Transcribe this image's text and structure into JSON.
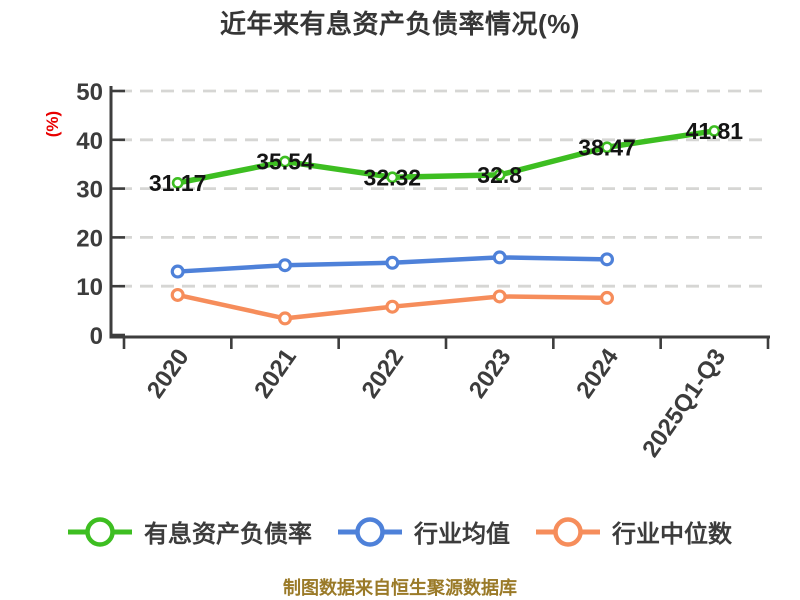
{
  "page": {
    "background": "#ffffff"
  },
  "chart_data": {
    "type": "line",
    "title": "近年来有息资产负债率情况(%)",
    "ylabel": "(%)",
    "ylabel_color": "#e80000",
    "categories": [
      "2020",
      "2021",
      "2022",
      "2023",
      "2024",
      "2025Q1-Q3"
    ],
    "yticks": [
      0,
      10,
      20,
      30,
      40,
      50
    ],
    "ylim": [
      0,
      50
    ],
    "grid": "horizontal-dashed",
    "grid_color": "#d6d6d4",
    "axis_color": "#3d3d3d",
    "legend_position": "bottom",
    "series": [
      {
        "name": "有息资产负债率",
        "color": "#3dbe21",
        "marker": "circle-white-fill",
        "values": [
          31.17,
          35.54,
          32.32,
          32.8,
          38.47,
          41.81
        ],
        "data_labels": [
          "31.17",
          "35.54",
          "32.32",
          "32.8",
          "38.47",
          "41.81"
        ]
      },
      {
        "name": "行业均值",
        "color": "#4e81d9",
        "marker": "circle-white-fill",
        "values": [
          13.0,
          14.3,
          14.8,
          15.9,
          15.5,
          null
        ]
      },
      {
        "name": "行业中位数",
        "color": "#f68d5b",
        "marker": "circle-white-fill",
        "values": [
          8.2,
          3.4,
          5.8,
          7.9,
          7.6,
          null
        ]
      }
    ],
    "source_note": "制图数据来自恒生聚源数据库",
    "source_note_color": "#9a7a28"
  }
}
